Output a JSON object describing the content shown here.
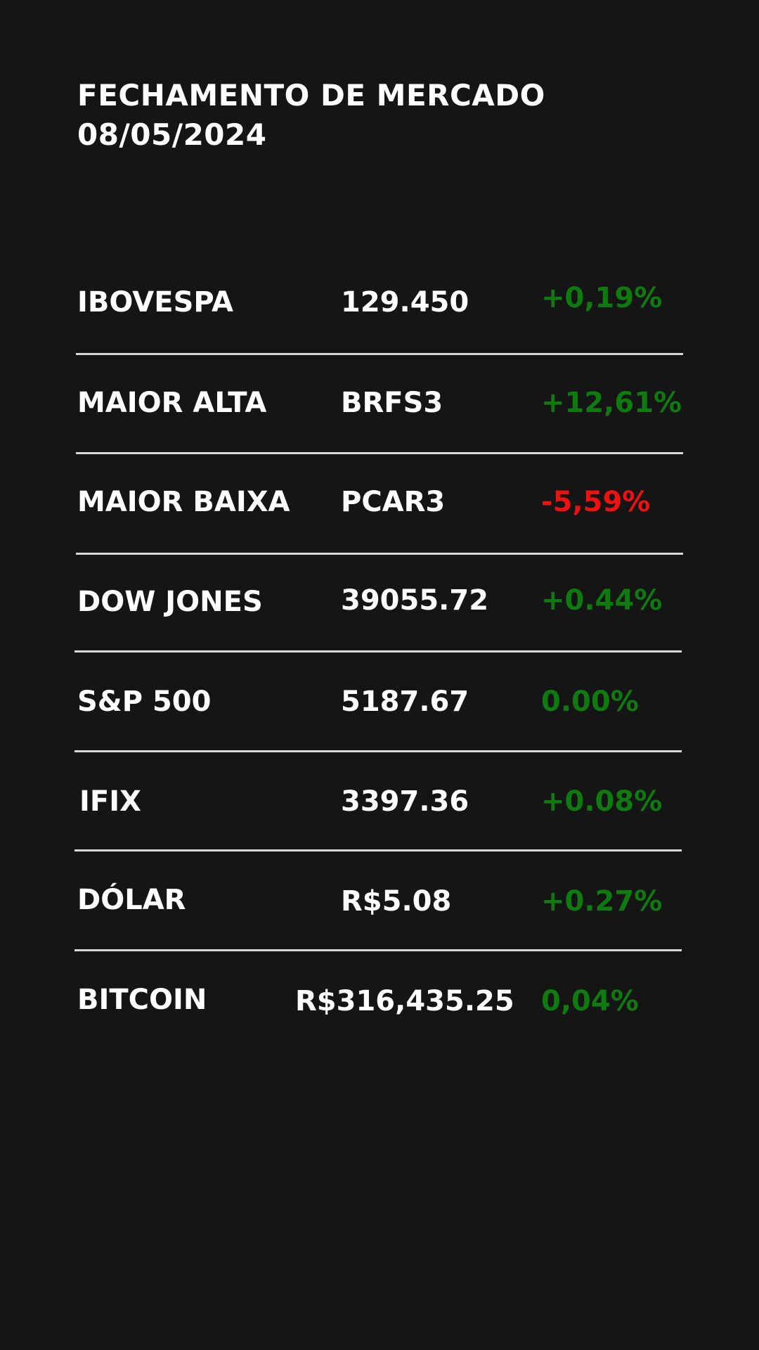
{
  "title_line1": "FECHAMENTO DE MERCADO",
  "title_line2": "08/05/2024",
  "rows": [
    {
      "label": "IBOVESPA",
      "value": "129.450",
      "change": "+0,19%",
      "color": "#0e7a10"
    },
    {
      "label": "MAIOR ALTA",
      "value": "BRFS3",
      "change": "+12,61%",
      "color": "#0e7a10"
    },
    {
      "label": "MAIOR BAIXA",
      "value": "PCAR3",
      "change": "-5,59%",
      "color": "#ee1111"
    },
    {
      "label": "DOW JONES",
      "value": "39055.72",
      "change": "+0.44%",
      "color": "#0e7a10"
    },
    {
      "label": "S&P 500",
      "value": "5187.67",
      "change": "0.00%",
      "color": "#0e7a10"
    },
    {
      "label": "IFIX",
      "value": "3397.36",
      "change": "+0.08%",
      "color": "#0e7a10"
    },
    {
      "label": "DÓLAR",
      "value": "R$5.08",
      "change": "+0.27%",
      "color": "#0e7a10"
    },
    {
      "label": "BITCOIN",
      "value": "R$316,435.25",
      "change": "0,04%",
      "color": "#0e7a10"
    }
  ]
}
